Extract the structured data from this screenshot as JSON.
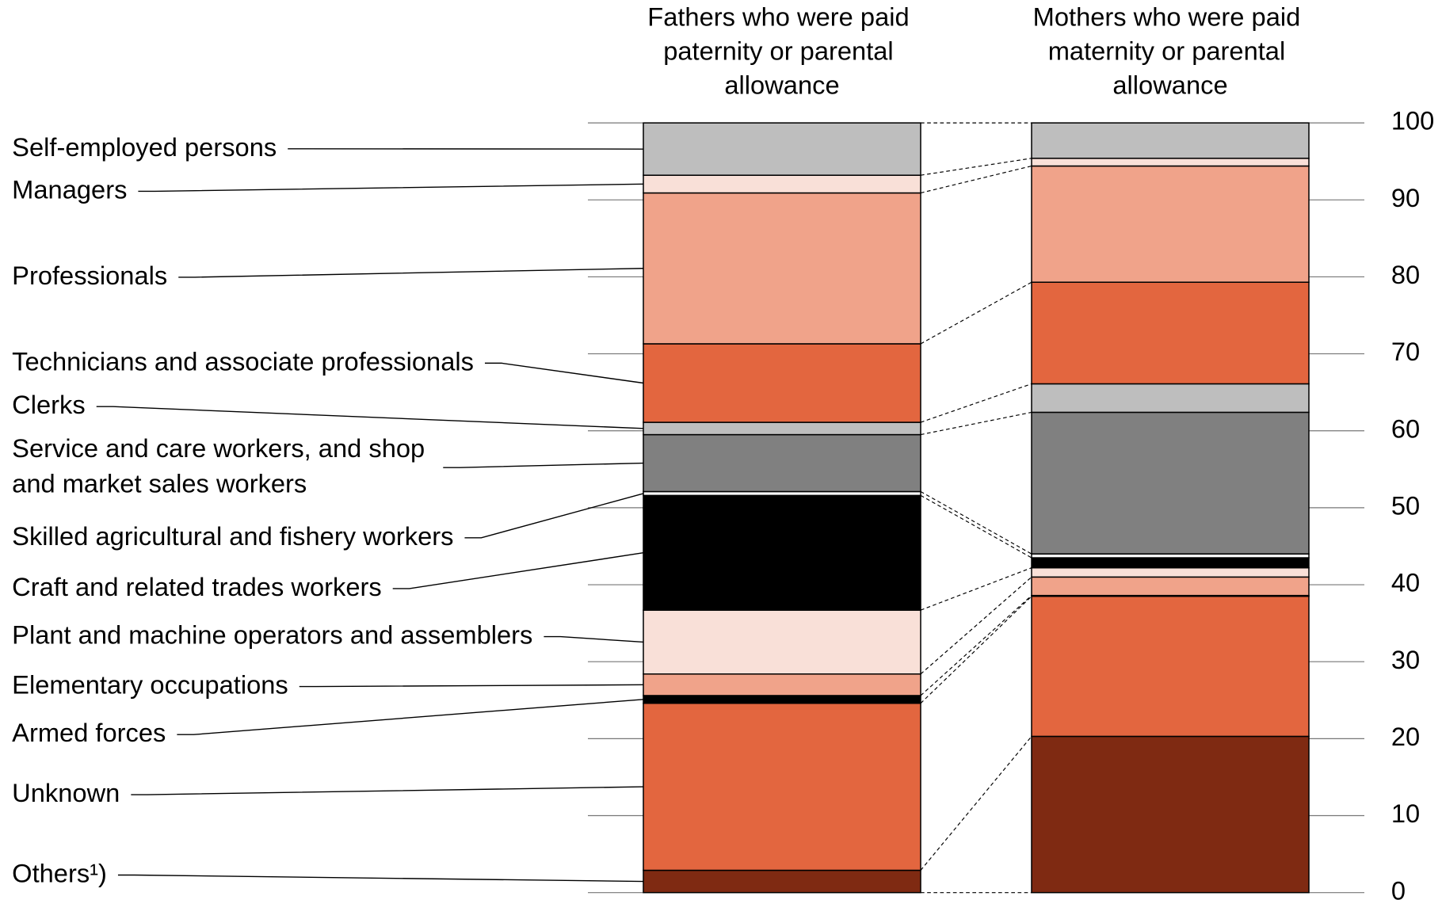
{
  "chart_data": {
    "type": "stacked-bar",
    "categories": [
      "Fathers who were paid paternity or parental allowance",
      "Mothers who were paid maternity or parental allowance"
    ],
    "series": [
      {
        "name": "Self-employed persons",
        "color": "#bebebe",
        "values": [
          6.8,
          4.6
        ]
      },
      {
        "name": "Managers",
        "color": "#f9e0d8",
        "values": [
          2.3,
          1.0
        ]
      },
      {
        "name": "Professionals",
        "color": "#f0a38a",
        "values": [
          19.6,
          15.1
        ]
      },
      {
        "name": "Technicians and associate professionals",
        "color": "#e3663f",
        "values": [
          10.2,
          13.2
        ]
      },
      {
        "name": "Clerks",
        "color": "#bebebe",
        "values": [
          1.6,
          3.7
        ]
      },
      {
        "name": "Service and care workers, and shop and market sales workers",
        "color": "#808080",
        "values": [
          7.4,
          18.4
        ]
      },
      {
        "name": "Skilled agricultural and fishery workers",
        "color": "#ffffff",
        "values": [
          0.5,
          0.5
        ]
      },
      {
        "name": "Craft and related trades workers",
        "color": "#000000",
        "values": [
          14.9,
          1.3
        ]
      },
      {
        "name": "Plant and machine operators and assemblers",
        "color": "#f9e0d8",
        "values": [
          8.3,
          1.2
        ]
      },
      {
        "name": "Elementary occupations",
        "color": "#f0a38a",
        "values": [
          2.8,
          2.4
        ]
      },
      {
        "name": "Armed forces",
        "color": "#000000",
        "values": [
          1.0,
          0.1
        ]
      },
      {
        "name": "Unknown",
        "color": "#e3663f",
        "values": [
          21.7,
          18.2
        ]
      },
      {
        "name": "Others¹)",
        "color": "#7f2a12",
        "values": [
          2.9,
          20.3
        ]
      }
    ],
    "ylim": [
      0,
      100
    ],
    "yticks": [
      0,
      10,
      20,
      30,
      40,
      50,
      60,
      70,
      80,
      90,
      100
    ],
    "grid": true
  }
}
